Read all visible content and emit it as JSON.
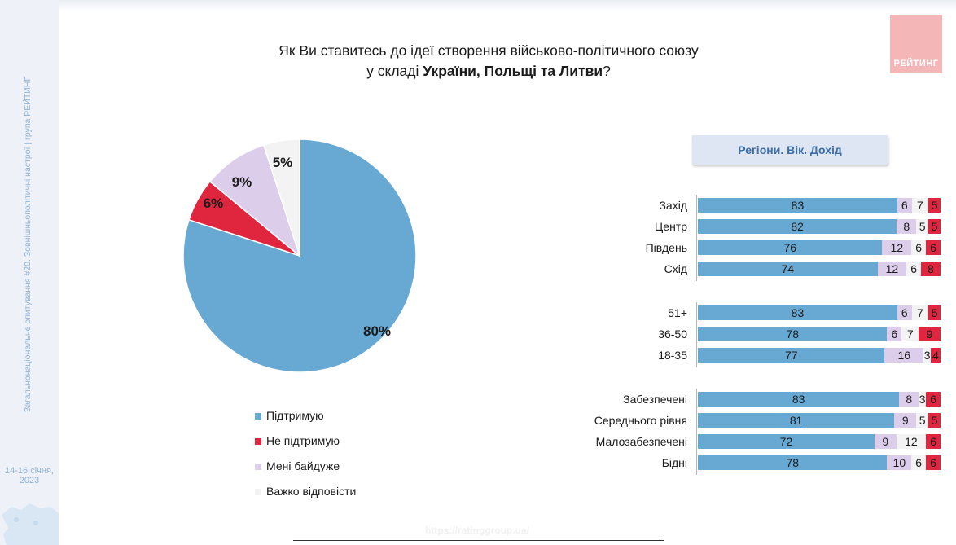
{
  "header": {
    "title_line1": "Як Ви ставитесь до ідеї створення військово-політичного союзу",
    "title_line2_prefix": "у складі ",
    "title_line2_bold": "України, Польщі та Литви",
    "title_line2_suffix": "?"
  },
  "logo_text": "РЕЙТИНГ",
  "sidebar": {
    "vertical_text": "Загальнонаціональне опитування #20. Зовнішньополітичні настрої | група РЕЙТИНГ",
    "date_line1": "14-16 січня,",
    "date_line2": "2023"
  },
  "url": "https://ratinggroup.ua/",
  "colors": {
    "support": "#68a9d4",
    "not_support": "#e0263f",
    "indifferent": "#dccdeb",
    "hard_to_say": "#f3f3f3",
    "panel_title": "#3d6ea7"
  },
  "chart_data": [
    {
      "type": "pie",
      "slices": [
        {
          "name": "Підтримую",
          "value": 80,
          "label": "80%",
          "color": "#68a9d4"
        },
        {
          "name": "Не підтримую",
          "value": 6,
          "label": "6%",
          "color": "#e0263f"
        },
        {
          "name": "Мені байдуже",
          "value": 9,
          "label": "9%",
          "color": "#dccdeb"
        },
        {
          "name": "Важко відповісти",
          "value": 5,
          "label": "5%",
          "color": "#f3f3f3"
        }
      ],
      "legend": [
        "Підтримую",
        "Не підтримую",
        "Мені байдуже",
        "Важко відповісти"
      ]
    },
    {
      "type": "bar",
      "orientation": "horizontal",
      "stacked": true,
      "title": "Регіони. Вік. Дохід",
      "groups": [
        {
          "rows": [
            {
              "label": "Захід",
              "values": [
                83,
                6,
                7,
                5
              ]
            },
            {
              "label": "Центр",
              "values": [
                82,
                8,
                5,
                5
              ]
            },
            {
              "label": "Південь",
              "values": [
                76,
                12,
                6,
                6
              ]
            },
            {
              "label": "Схід",
              "values": [
                74,
                12,
                6,
                8
              ]
            }
          ]
        },
        {
          "rows": [
            {
              "label": "51+",
              "values": [
                83,
                6,
                7,
                5
              ]
            },
            {
              "label": "36-50",
              "values": [
                78,
                6,
                7,
                9
              ]
            },
            {
              "label": "18-35",
              "values": [
                77,
                16,
                3,
                4
              ]
            }
          ]
        },
        {
          "rows": [
            {
              "label": "Забезпечені",
              "values": [
                83,
                8,
                3,
                6
              ]
            },
            {
              "label": "Середнього рівня",
              "values": [
                81,
                9,
                5,
                5
              ]
            },
            {
              "label": "Малозабезпечені",
              "values": [
                72,
                9,
                12,
                6
              ]
            },
            {
              "label": "Бідні",
              "values": [
                78,
                10,
                6,
                6
              ]
            }
          ]
        }
      ],
      "series_order": [
        "Підтримую",
        "Мені байдуже",
        "Важко відповісти",
        "Не підтримую"
      ],
      "series_colors": [
        "#68a9d4",
        "#dccdeb",
        "#f3f3f3",
        "#e0263f"
      ]
    }
  ]
}
